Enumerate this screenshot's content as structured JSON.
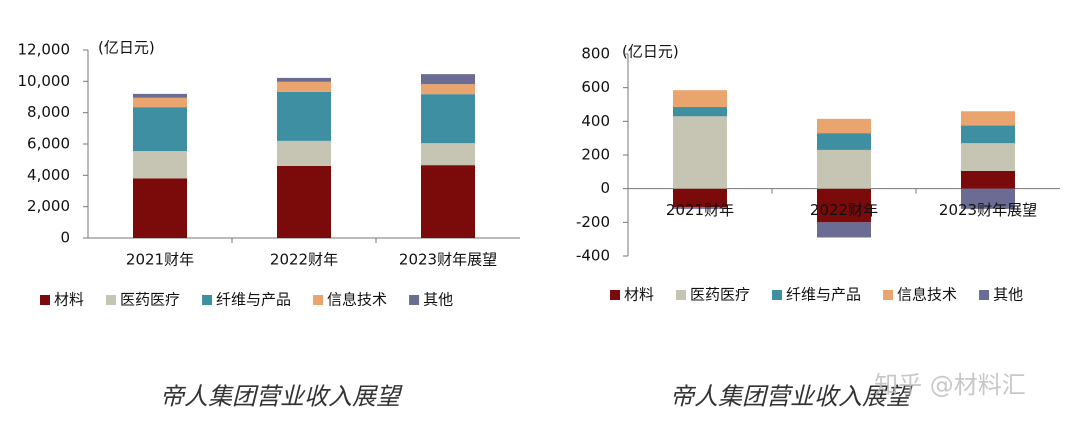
{
  "chart_data": [
    {
      "type": "bar",
      "stacked": true,
      "unit": "(亿日元)",
      "categories": [
        "2021财年",
        "2022财年",
        "2023财年展望"
      ],
      "series": [
        {
          "name": "材料",
          "color": "#7b0a0a",
          "values": [
            3800,
            4600,
            4650
          ]
        },
        {
          "name": "医药医疗",
          "color": "#c6c5b3",
          "values": [
            1750,
            1600,
            1400
          ]
        },
        {
          "name": "纤维与产品",
          "color": "#3f8fa3",
          "values": [
            2800,
            3130,
            3130
          ]
        },
        {
          "name": "信息技术",
          "color": "#eaa46e",
          "values": [
            600,
            640,
            640
          ]
        },
        {
          "name": "其他",
          "color": "#6b6c93",
          "values": [
            250,
            250,
            640
          ]
        }
      ],
      "ylim": [
        0,
        12000
      ],
      "yticks": [
        0,
        {
          "value": 2000,
          "label": "2,000"
        },
        {
          "value": 4000,
          "label": "4,000"
        },
        {
          "value": 6000,
          "label": "6,000"
        },
        {
          "value": 8000,
          "label": "8,000"
        },
        {
          "value": 10000,
          "label": "10,000"
        },
        {
          "value": 12000,
          "label": "12,000"
        }
      ]
    },
    {
      "type": "bar",
      "stacked": true,
      "unit": "(亿日元)",
      "categories": [
        "2021财年",
        "2022财年",
        "2023财年展望"
      ],
      "series": [
        {
          "name": "材料",
          "color": "#7b0a0a",
          "values": [
            -110,
            -200,
            105
          ]
        },
        {
          "name": "医药医疗",
          "color": "#c6c5b3",
          "values": [
            430,
            230,
            165
          ]
        },
        {
          "name": "纤维与产品",
          "color": "#3f8fa3",
          "values": [
            55,
            100,
            105
          ]
        },
        {
          "name": "信息技术",
          "color": "#eaa46e",
          "values": [
            100,
            85,
            85
          ]
        },
        {
          "name": "其他",
          "color": "#6b6c93",
          "values": [
            -10,
            -90,
            -120
          ]
        }
      ],
      "ylim": [
        -400,
        800
      ],
      "yticks": [
        -400,
        -200,
        0,
        200,
        400,
        600,
        800
      ]
    }
  ],
  "captions": [
    "帝人集团营业收入展望",
    "帝人集团营业收入展望"
  ],
  "watermark": "知乎 @材料汇"
}
